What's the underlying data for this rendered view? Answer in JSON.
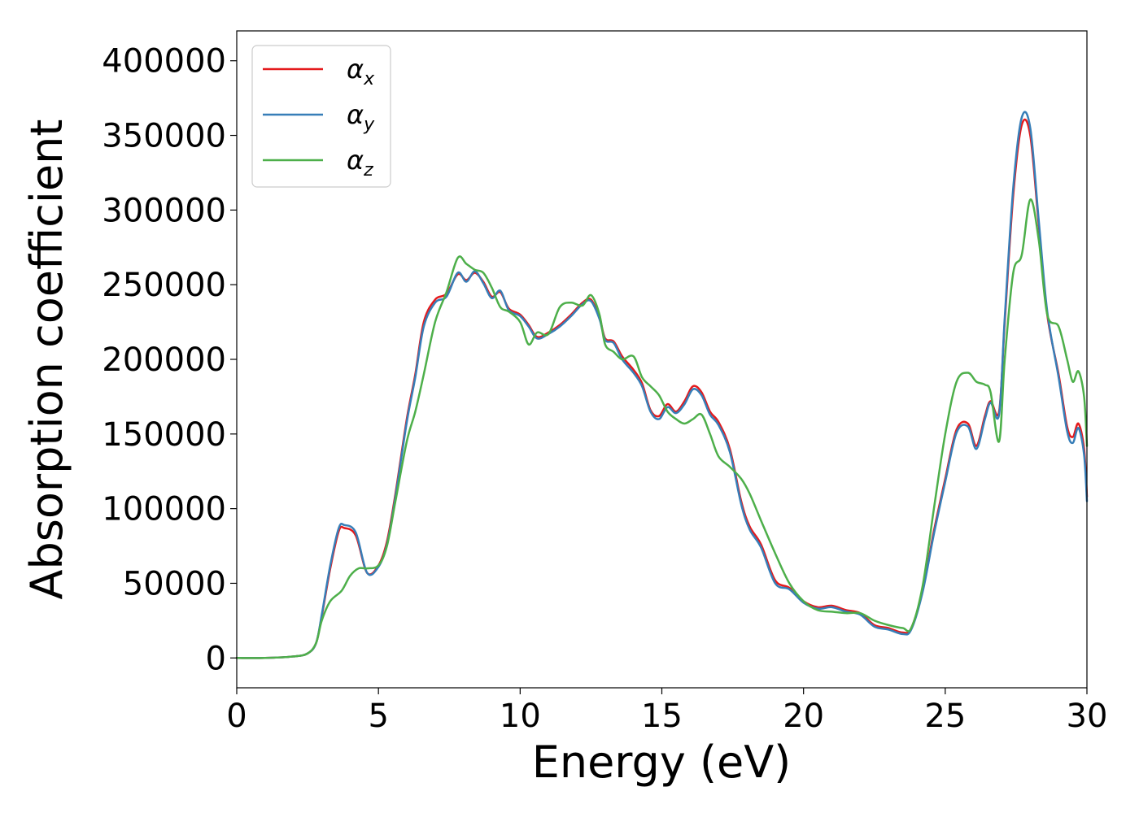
{
  "chart_data": {
    "type": "line",
    "title": "",
    "xlabel": "Energy (eV)",
    "ylabel": "Absorption coefficient",
    "xlim": [
      0,
      30
    ],
    "ylim": [
      -20000,
      420000
    ],
    "xticks": [
      0,
      5,
      10,
      15,
      20,
      25,
      30
    ],
    "xtick_labels": [
      "0",
      "5",
      "10",
      "15",
      "20",
      "25",
      "30"
    ],
    "yticks": [
      0,
      50000,
      100000,
      150000,
      200000,
      250000,
      300000,
      350000,
      400000
    ],
    "ytick_labels": [
      "0",
      "50000",
      "100000",
      "150000",
      "200000",
      "250000",
      "300000",
      "350000",
      "400000"
    ],
    "grid": false,
    "legend": "top-left",
    "series": [
      {
        "name": "α_x",
        "label_main": "α",
        "label_sub": "x",
        "color": "#e41a1c",
        "x": [
          0,
          1,
          2,
          2.5,
          2.8,
          3.0,
          3.3,
          3.6,
          3.8,
          4.2,
          4.6,
          5.0,
          5.3,
          5.6,
          6.0,
          6.3,
          6.6,
          7.0,
          7.4,
          7.8,
          8.1,
          8.4,
          8.7,
          9.0,
          9.3,
          9.6,
          10.0,
          10.3,
          10.6,
          11.0,
          11.4,
          11.8,
          12.2,
          12.5,
          12.8,
          13.0,
          13.3,
          13.6,
          14.0,
          14.3,
          14.6,
          14.9,
          15.2,
          15.5,
          15.8,
          16.1,
          16.4,
          16.7,
          17.0,
          17.4,
          17.8,
          18.1,
          18.5,
          19.0,
          19.5,
          20.0,
          20.5,
          21.0,
          21.5,
          22.0,
          22.5,
          23.0,
          23.5,
          23.8,
          24.2,
          24.6,
          25.0,
          25.4,
          25.8,
          26.1,
          26.4,
          26.6,
          26.9,
          27.1,
          27.4,
          27.7,
          28.0,
          28.3,
          28.6,
          29.0,
          29.3,
          29.5,
          29.7,
          29.9,
          30.0
        ],
        "values": [
          0,
          0,
          1000,
          3000,
          10000,
          28000,
          60000,
          85000,
          87000,
          82000,
          57000,
          62000,
          78000,
          110000,
          160000,
          190000,
          225000,
          240000,
          244000,
          257000,
          253000,
          258000,
          252000,
          242000,
          245000,
          234000,
          230000,
          223000,
          215000,
          218000,
          223000,
          230000,
          238000,
          240000,
          228000,
          214000,
          212000,
          202000,
          193000,
          184000,
          166000,
          162000,
          170000,
          165000,
          172000,
          182000,
          178000,
          165000,
          158000,
          140000,
          105000,
          88000,
          76000,
          52000,
          47000,
          38000,
          34000,
          35000,
          32000,
          30000,
          22000,
          20000,
          17000,
          20000,
          45000,
          85000,
          120000,
          153000,
          157000,
          142000,
          162000,
          172000,
          165000,
          225000,
          310000,
          357000,
          350000,
          290000,
          230000,
          190000,
          155000,
          148000,
          157000,
          140000,
          108000
        ]
      },
      {
        "name": "α_y",
        "label_main": "α",
        "label_sub": "y",
        "color": "#377eb8",
        "x": [
          0,
          1,
          2,
          2.5,
          2.8,
          3.0,
          3.3,
          3.6,
          3.8,
          4.2,
          4.6,
          5.0,
          5.3,
          5.6,
          6.0,
          6.3,
          6.6,
          7.0,
          7.4,
          7.8,
          8.1,
          8.4,
          8.7,
          9.0,
          9.3,
          9.6,
          10.0,
          10.3,
          10.6,
          11.0,
          11.4,
          11.8,
          12.2,
          12.5,
          12.8,
          13.0,
          13.3,
          13.6,
          14.0,
          14.3,
          14.6,
          14.9,
          15.2,
          15.5,
          15.8,
          16.1,
          16.4,
          16.7,
          17.0,
          17.4,
          17.8,
          18.1,
          18.5,
          19.0,
          19.5,
          20.0,
          20.5,
          21.0,
          21.5,
          22.0,
          22.5,
          23.0,
          23.5,
          23.8,
          24.2,
          24.6,
          25.0,
          25.4,
          25.8,
          26.1,
          26.4,
          26.6,
          26.9,
          27.1,
          27.4,
          27.7,
          28.0,
          28.3,
          28.6,
          29.0,
          29.3,
          29.5,
          29.7,
          29.9,
          30.0
        ],
        "values": [
          0,
          0,
          1000,
          3000,
          10000,
          29000,
          62000,
          87000,
          89000,
          84000,
          57000,
          61000,
          76000,
          108000,
          158000,
          188000,
          222000,
          238000,
          242000,
          258000,
          252000,
          259000,
          251000,
          241000,
          246000,
          233000,
          229000,
          222000,
          214000,
          217000,
          222000,
          229000,
          237000,
          239000,
          227000,
          213000,
          211000,
          200000,
          191000,
          182000,
          165000,
          160000,
          168000,
          164000,
          170000,
          180000,
          176000,
          163000,
          156000,
          138000,
          103000,
          86000,
          74000,
          50000,
          46000,
          37000,
          33000,
          34000,
          31000,
          29000,
          21000,
          19000,
          16000,
          19000,
          44000,
          83000,
          118000,
          151000,
          155000,
          140000,
          160000,
          171000,
          163000,
          228000,
          315000,
          362000,
          355000,
          293000,
          232000,
          188000,
          152000,
          144000,
          154000,
          136000,
          105000
        ]
      },
      {
        "name": "α_z",
        "label_main": "α",
        "label_sub": "z",
        "color": "#4daf4a",
        "x": [
          0,
          1,
          2,
          2.5,
          2.8,
          3.0,
          3.3,
          3.7,
          4.0,
          4.3,
          4.6,
          5.0,
          5.3,
          5.6,
          6.0,
          6.3,
          6.6,
          7.0,
          7.4,
          7.8,
          8.1,
          8.4,
          8.7,
          9.0,
          9.3,
          9.6,
          10.0,
          10.3,
          10.6,
          11.0,
          11.4,
          11.8,
          12.2,
          12.5,
          12.8,
          13.0,
          13.3,
          13.6,
          14.0,
          14.3,
          14.6,
          14.9,
          15.2,
          15.5,
          15.8,
          16.1,
          16.4,
          16.7,
          17.0,
          17.4,
          17.8,
          18.1,
          18.5,
          19.0,
          19.5,
          20.0,
          20.5,
          21.0,
          21.5,
          22.0,
          22.5,
          23.0,
          23.5,
          23.8,
          24.2,
          24.6,
          25.0,
          25.4,
          25.8,
          26.1,
          26.4,
          26.6,
          26.9,
          27.1,
          27.4,
          27.7,
          28.0,
          28.3,
          28.6,
          29.0,
          29.3,
          29.5,
          29.7,
          29.9,
          30.0
        ],
        "values": [
          0,
          0,
          1000,
          3000,
          10000,
          25000,
          38000,
          45000,
          55000,
          60000,
          60000,
          62000,
          75000,
          105000,
          145000,
          165000,
          190000,
          225000,
          245000,
          268000,
          264000,
          260000,
          258000,
          248000,
          235000,
          232000,
          225000,
          210000,
          218000,
          217000,
          235000,
          238000,
          236000,
          243000,
          230000,
          210000,
          205000,
          200000,
          202000,
          188000,
          182000,
          176000,
          165000,
          160000,
          157000,
          160000,
          163000,
          150000,
          135000,
          128000,
          120000,
          110000,
          92000,
          70000,
          50000,
          38000,
          32000,
          31000,
          30000,
          30000,
          25000,
          22000,
          20000,
          20000,
          48000,
          100000,
          150000,
          185000,
          191000,
          185000,
          183000,
          178000,
          145000,
          200000,
          258000,
          270000,
          307000,
          280000,
          230000,
          222000,
          200000,
          185000,
          192000,
          175000,
          142000
        ]
      }
    ]
  }
}
